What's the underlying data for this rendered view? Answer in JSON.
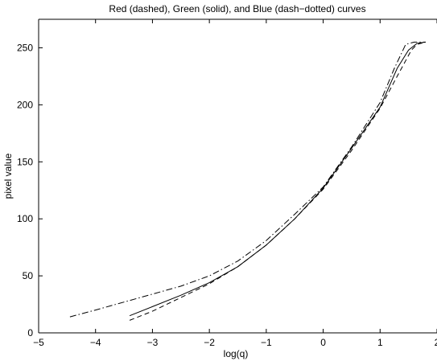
{
  "chart_data": {
    "type": "line",
    "title": "Red (dashed), Green (solid), and Blue (dash−dotted) curves",
    "xlabel": "log(q)",
    "ylabel": "pixel value",
    "xlim": [
      -5,
      2
    ],
    "ylim": [
      0,
      275
    ],
    "xticks": [
      {
        "value": -5,
        "label": "−5"
      },
      {
        "value": -4,
        "label": "−4"
      },
      {
        "value": -3,
        "label": "−3"
      },
      {
        "value": -2,
        "label": "−2"
      },
      {
        "value": -1,
        "label": "−1"
      },
      {
        "value": 0,
        "label": "0"
      },
      {
        "value": 1,
        "label": "1"
      },
      {
        "value": 2,
        "label": "2"
      }
    ],
    "yticks": [
      {
        "value": 0,
        "label": "0"
      },
      {
        "value": 50,
        "label": "50"
      },
      {
        "value": 100,
        "label": "100"
      },
      {
        "value": 150,
        "label": "150"
      },
      {
        "value": 200,
        "label": "200"
      },
      {
        "value": 250,
        "label": "250"
      }
    ],
    "grid": false,
    "series": [
      {
        "style": "dashed",
        "color": "#000000",
        "x": [
          -3.4,
          -3.0,
          -2.5,
          -2.0,
          -1.5,
          -1.0,
          -0.5,
          0.0,
          0.5,
          1.0,
          1.3,
          1.55,
          1.65,
          1.8
        ],
        "y": [
          11,
          19,
          31,
          43,
          58,
          77,
          100,
          126,
          160,
          197,
          225,
          248,
          253,
          255
        ]
      },
      {
        "style": "solid",
        "color": "#000000",
        "x": [
          -3.4,
          -3.0,
          -2.5,
          -2.0,
          -1.5,
          -1.0,
          -0.5,
          0.0,
          0.5,
          1.0,
          1.3,
          1.5,
          1.65,
          1.8
        ],
        "y": [
          15,
          23,
          33,
          44,
          58,
          77,
          100,
          127,
          162,
          198,
          232,
          248,
          254,
          255
        ]
      },
      {
        "style": "dashdot",
        "color": "#000000",
        "x": [
          -4.45,
          -4.0,
          -3.5,
          -3.0,
          -2.5,
          -2.0,
          -1.5,
          -1.0,
          -0.5,
          0.0,
          0.5,
          1.0,
          1.25,
          1.45,
          1.6,
          1.8
        ],
        "y": [
          14,
          20,
          27,
          34,
          41,
          50,
          63,
          81,
          104,
          128,
          163,
          202,
          232,
          253,
          255,
          255
        ]
      }
    ]
  }
}
